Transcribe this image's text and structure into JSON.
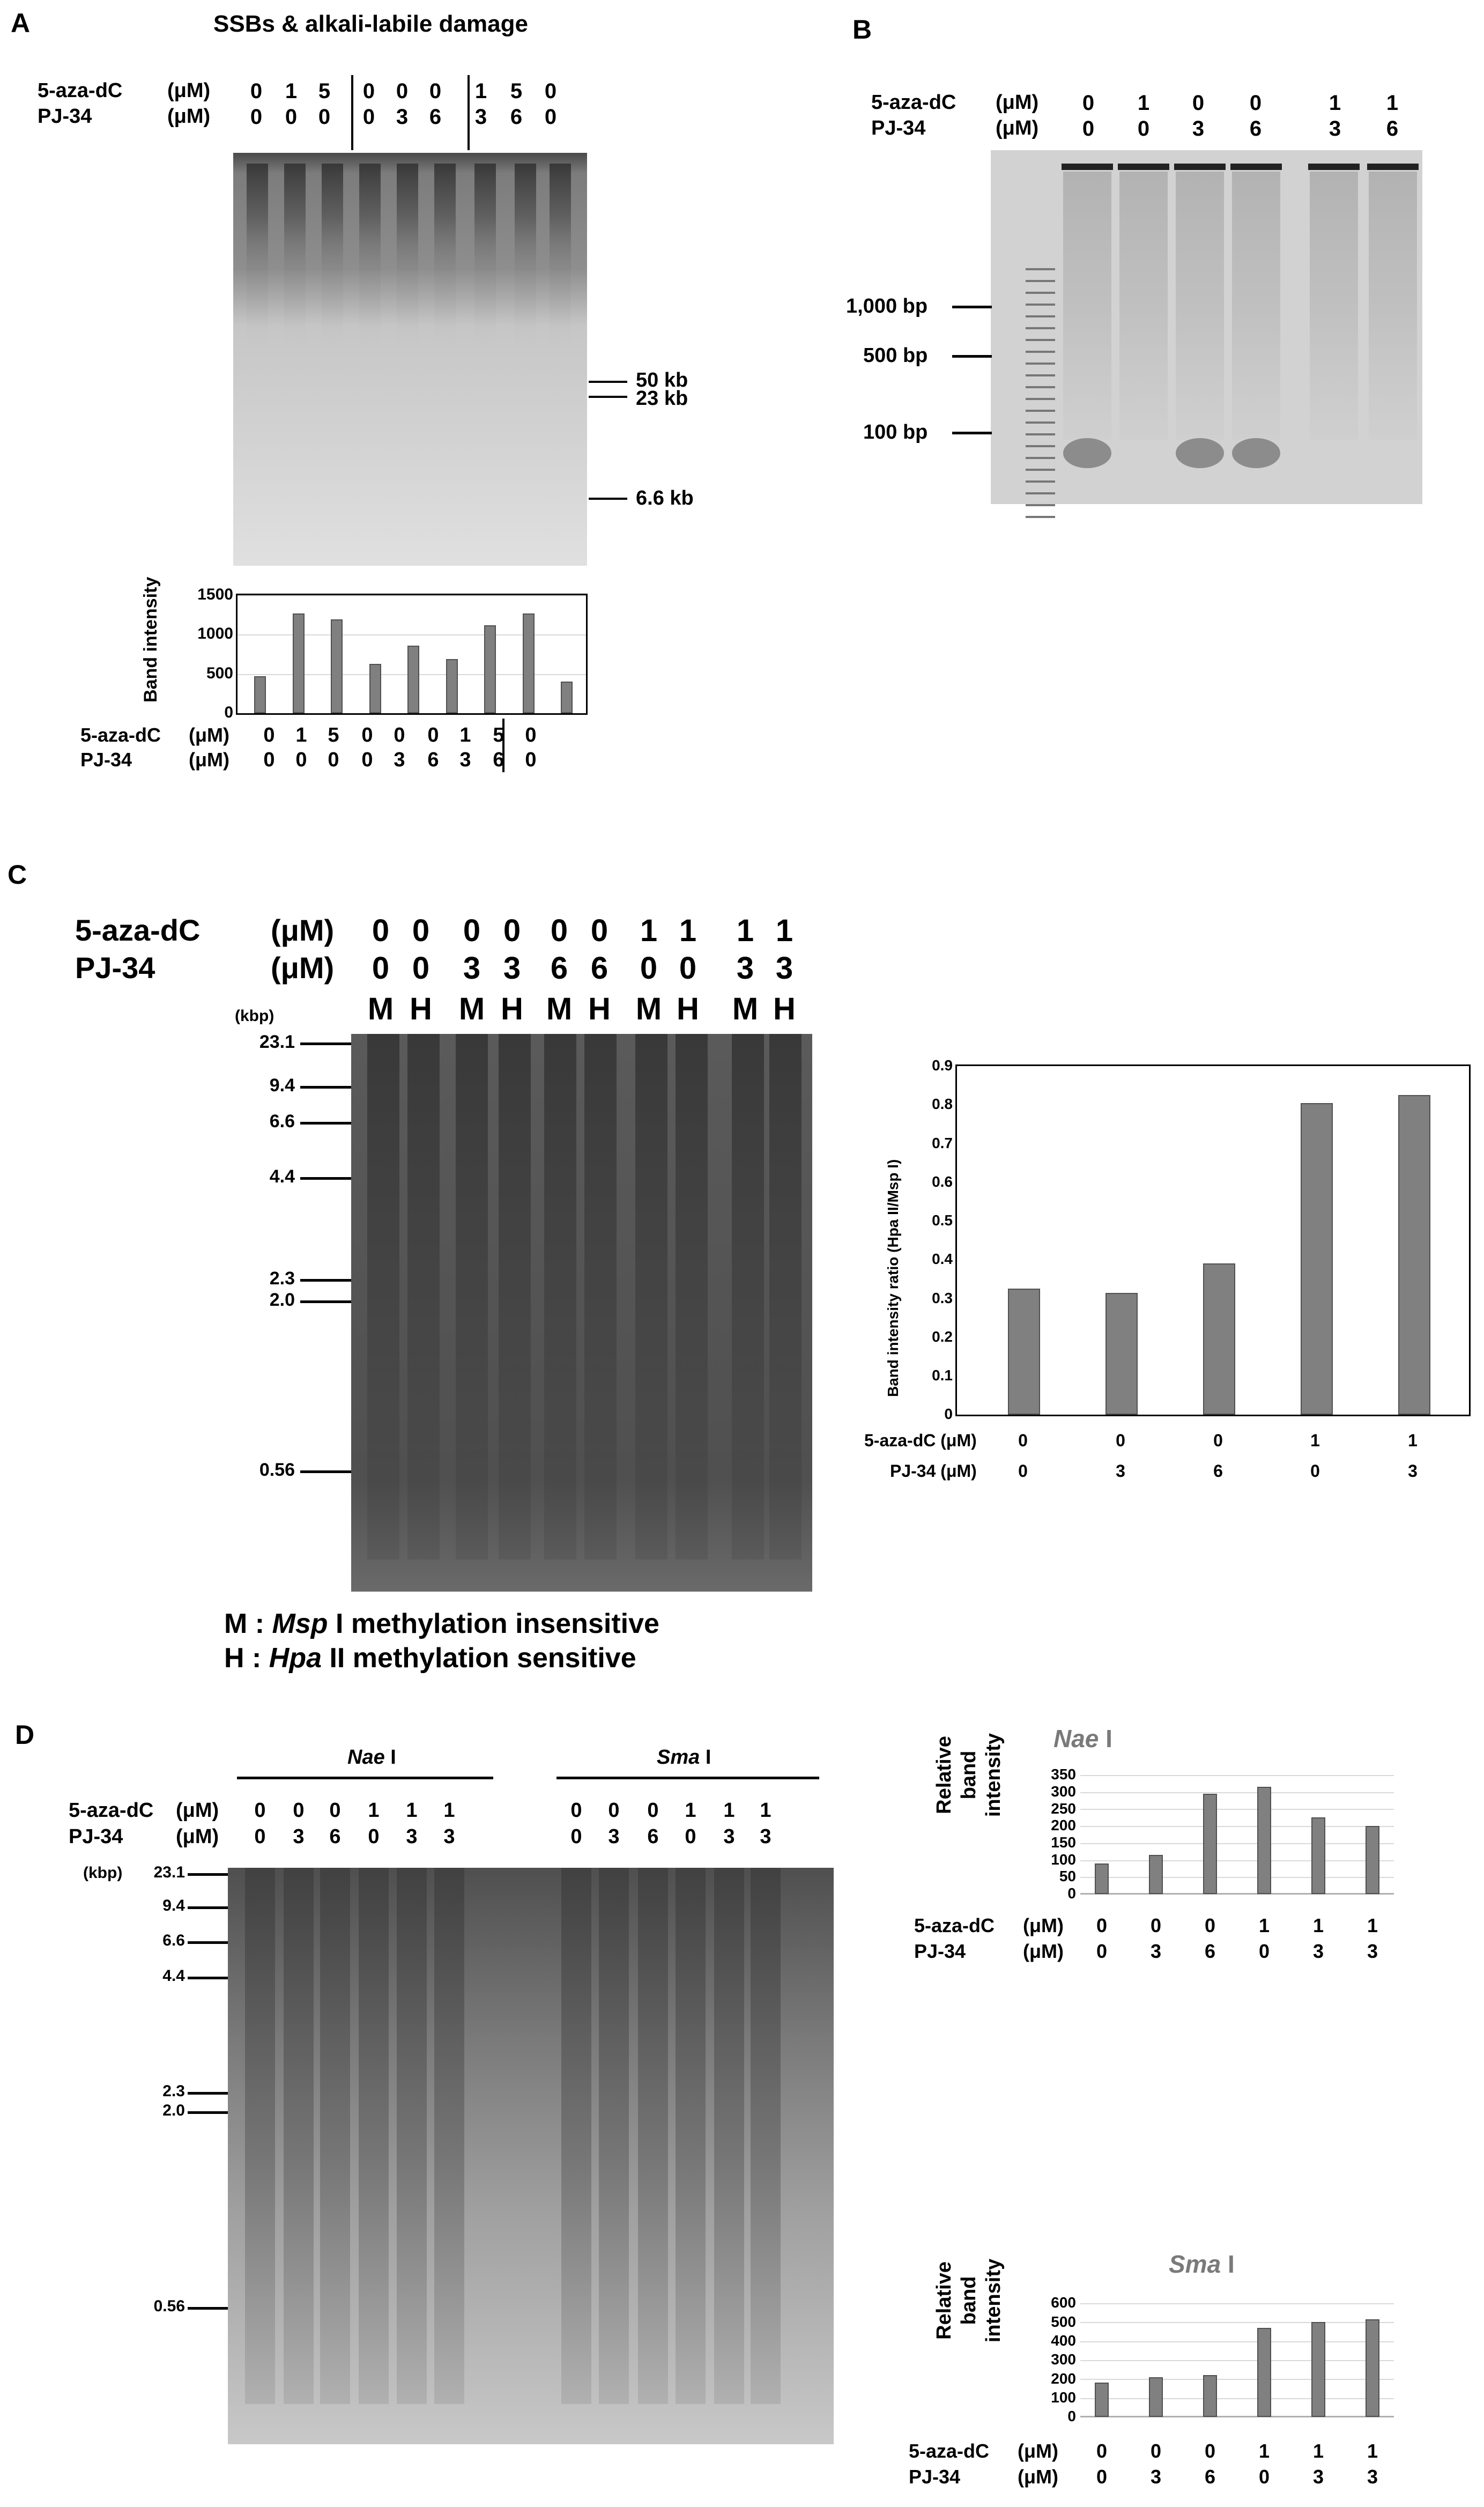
{
  "panelA": {
    "letter": "A",
    "title": "SSBs & alkali-labile damage",
    "row1_label": "5-aza-dC",
    "row1_unit": "(μM)",
    "row2_label": "PJ-34",
    "row2_unit": "(μM)",
    "aza": [
      "0",
      "1",
      "5",
      "0",
      "0",
      "0",
      "1",
      "5",
      "0"
    ],
    "pj": [
      "0",
      "0",
      "0",
      "0",
      "3",
      "6",
      "3",
      "6",
      "0"
    ],
    "markers": [
      "50 kb",
      "23 kb",
      "6.6 kb"
    ],
    "chart_ylabel": "Band intensity"
  },
  "panelB": {
    "letter": "B",
    "row1_label": "5-aza-dC",
    "row1_unit": "(μM)",
    "row2_label": "PJ-34",
    "row2_unit": "(μM)",
    "aza": [
      "0",
      "1",
      "0",
      "0",
      "1",
      "1"
    ],
    "pj": [
      "0",
      "0",
      "3",
      "6",
      "3",
      "6"
    ],
    "markers": [
      "1,000 bp",
      "500 bp",
      "100 bp"
    ]
  },
  "panelC": {
    "letter": "C",
    "row1_label": "5-aza-dC",
    "row1_unit": "(μM)",
    "row2_label": "PJ-34",
    "row2_unit": "(μM)",
    "aza": [
      "0",
      "0",
      "0",
      "0",
      "0",
      "0",
      "1",
      "1",
      "1",
      "1"
    ],
    "pj": [
      "0",
      "0",
      "3",
      "3",
      "6",
      "6",
      "0",
      "0",
      "3",
      "3"
    ],
    "enzyme": [
      "M",
      "H",
      "M",
      "H",
      "M",
      "H",
      "M",
      "H",
      "M",
      "H"
    ],
    "kbp_label": "(kbp)",
    "markers": [
      "23.1",
      "9.4",
      "6.6",
      "4.4",
      "2.3",
      "2.0",
      "0.56"
    ],
    "legend_M_prefix": "M : ",
    "legend_M_enzyme": "Msp",
    "legend_M_suffix": " I  methylation insensitive",
    "legend_H_prefix": "H : ",
    "legend_H_enzyme": "Hpa",
    "legend_H_suffix": " II  methylation sensitive",
    "chart_ylabel": "Band intensity ratio  (Hpa II/Msp I)",
    "chart_row1": "5-aza-dC (μM)",
    "chart_row2": "PJ-34 (μM)"
  },
  "panelD": {
    "letter": "D",
    "row1_label": "5-aza-dC",
    "row1_unit": "(μM)",
    "row2_label": "PJ-34",
    "row2_unit": "(μM)",
    "nae_title": "Nae",
    "nae_suffix": " I",
    "sma_title": "Sma",
    "sma_suffix": " I",
    "aza": [
      "0",
      "0",
      "0",
      "1",
      "1",
      "1"
    ],
    "pj": [
      "0",
      "3",
      "6",
      "0",
      "3",
      "3"
    ],
    "kbp_label": "(kbp)",
    "markers": [
      "23.1",
      "9.4",
      "6.6",
      "4.4",
      "2.3",
      "2.0",
      "0.56"
    ],
    "chart_ylabel": "Relative band intensity"
  },
  "chart_data": [
    {
      "type": "bar",
      "panel": "A",
      "categories": [
        "1",
        "2",
        "3",
        "4",
        "5",
        "6",
        "7",
        "8",
        "9"
      ],
      "values": [
        470,
        1270,
        1190,
        630,
        860,
        690,
        1120,
        1270,
        400
      ],
      "ylabel": "Band intensity",
      "ylim": [
        0,
        1500
      ],
      "yticks": [
        0,
        500,
        1000,
        1500
      ],
      "grid": true
    },
    {
      "type": "bar",
      "panel": "C",
      "categories": [
        "1",
        "2",
        "3",
        "4",
        "5"
      ],
      "values": [
        0.325,
        0.315,
        0.39,
        0.805,
        0.825
      ],
      "ylabel": "Band intensity ratio  (Hpa II/Msp I)",
      "ylim": [
        0,
        0.9
      ],
      "yticks": [
        0,
        0.1,
        0.2,
        0.3,
        0.4,
        0.5,
        0.6,
        0.7,
        0.8,
        0.9
      ],
      "grid": false
    },
    {
      "type": "bar",
      "panel": "D",
      "title": "Nae I",
      "categories": [
        "1",
        "2",
        "3",
        "4",
        "5",
        "6"
      ],
      "values": [
        90,
        115,
        295,
        315,
        225,
        200
      ],
      "ylabel": "Relative band intensity",
      "ylim": [
        0,
        350
      ],
      "yticks": [
        0,
        50,
        100,
        150,
        200,
        250,
        300,
        350
      ],
      "grid": true
    },
    {
      "type": "bar",
      "panel": "D",
      "title": "Sma I",
      "categories": [
        "1",
        "2",
        "3",
        "4",
        "5",
        "6"
      ],
      "values": [
        180,
        210,
        220,
        470,
        500,
        515
      ],
      "ylabel": "Relative band intensity",
      "ylim": [
        0,
        600
      ],
      "yticks": [
        0,
        100,
        200,
        300,
        400,
        500,
        600
      ],
      "grid": true
    }
  ]
}
